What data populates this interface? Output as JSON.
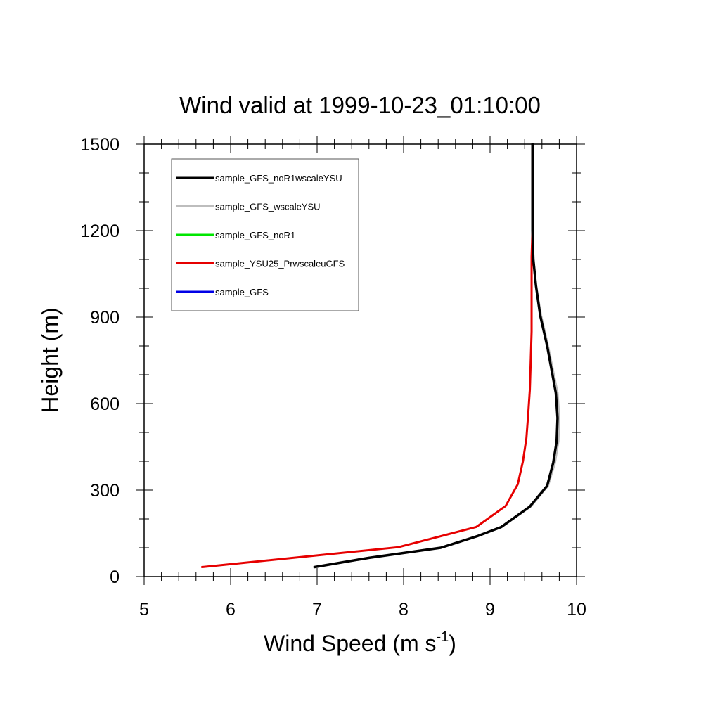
{
  "chart_data": {
    "type": "line",
    "title": "Wind valid at 1999-10-23_01:10:00",
    "xlabel_main": "Wind Speed (m s",
    "xlabel_sup": "-1",
    "xlabel_close": ")",
    "ylabel": "Height (m)",
    "xlim": [
      5,
      10
    ],
    "ylim": [
      0,
      1500
    ],
    "x_ticks": [
      5,
      6,
      7,
      8,
      9,
      10
    ],
    "x_tick_labels": [
      "5",
      "6",
      "7",
      "8",
      "9",
      "10"
    ],
    "y_ticks": [
      0,
      300,
      600,
      900,
      1200,
      1500
    ],
    "y_tick_labels": [
      "0",
      "300",
      "600",
      "900",
      "1200",
      "1500"
    ],
    "legend_position": "top-left",
    "series": [
      {
        "name": "sample_GFS_noR1wscaleYSU",
        "color": "#000000",
        "points": [
          [
            6.97,
            33
          ],
          [
            7.6,
            65
          ],
          [
            8.43,
            100
          ],
          [
            8.85,
            140
          ],
          [
            9.13,
            172
          ],
          [
            9.46,
            243
          ],
          [
            9.66,
            315
          ],
          [
            9.73,
            395
          ],
          [
            9.77,
            470
          ],
          [
            9.78,
            550
          ],
          [
            9.76,
            637
          ],
          [
            9.66,
            800
          ],
          [
            9.58,
            905
          ],
          [
            9.53,
            1010
          ],
          [
            9.5,
            1100
          ],
          [
            9.49,
            1200
          ],
          [
            9.49,
            1300
          ],
          [
            9.49,
            1400
          ],
          [
            9.49,
            1500
          ]
        ]
      },
      {
        "name": "sample_GFS_wscaleYSU",
        "color": "#bdbdbd",
        "points": [
          [
            6.97,
            33
          ],
          [
            7.6,
            65
          ],
          [
            8.43,
            100
          ],
          [
            8.85,
            140
          ],
          [
            9.13,
            172
          ],
          [
            9.47,
            243
          ],
          [
            9.67,
            315
          ],
          [
            9.75,
            395
          ],
          [
            9.79,
            470
          ],
          [
            9.8,
            550
          ],
          [
            9.78,
            637
          ],
          [
            9.67,
            800
          ],
          [
            9.59,
            905
          ],
          [
            9.53,
            1010
          ],
          [
            9.5,
            1100
          ],
          [
            9.49,
            1200
          ],
          [
            9.49,
            1300
          ],
          [
            9.49,
            1400
          ],
          [
            9.49,
            1500
          ]
        ]
      },
      {
        "name": "sample_GFS_noR1",
        "color": "#00e600",
        "points": []
      },
      {
        "name": "sample_YSU25_PrwscaleuGFS",
        "color": "#e60000",
        "points": [
          [
            5.67,
            33
          ],
          [
            7.94,
            102
          ],
          [
            8.84,
            172
          ],
          [
            9.18,
            245
          ],
          [
            9.32,
            320
          ],
          [
            9.38,
            400
          ],
          [
            9.42,
            480
          ],
          [
            9.44,
            560
          ],
          [
            9.46,
            650
          ],
          [
            9.47,
            750
          ],
          [
            9.48,
            850
          ],
          [
            9.48,
            950
          ],
          [
            9.48,
            1050
          ],
          [
            9.48,
            1110
          ],
          [
            9.49,
            1200
          ],
          [
            9.49,
            1300
          ],
          [
            9.49,
            1400
          ],
          [
            9.49,
            1500
          ]
        ]
      },
      {
        "name": "sample_GFS",
        "color": "#0000e6",
        "points": []
      }
    ]
  }
}
